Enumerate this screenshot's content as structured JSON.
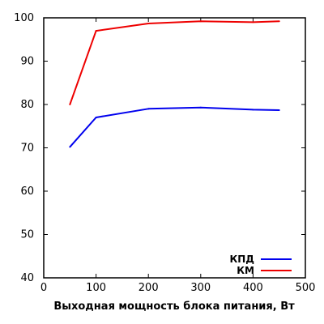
{
  "chart_data": {
    "type": "line",
    "title": "",
    "xlabel": "Выходная мощность блока питания, Вт",
    "ylabel": "",
    "xlim": [
      0,
      500
    ],
    "ylim": [
      40,
      100
    ],
    "x_ticks": [
      0,
      100,
      200,
      300,
      400,
      500
    ],
    "y_ticks": [
      40,
      50,
      60,
      70,
      80,
      90,
      100
    ],
    "grid": "none",
    "legend_position": "bottom-right",
    "series": [
      {
        "name": "КПД",
        "color": "#0000ee",
        "x": [
          50,
          100,
          200,
          300,
          400,
          450
        ],
        "y": [
          70.2,
          77.0,
          79.0,
          79.3,
          78.8,
          78.7
        ]
      },
      {
        "name": "КМ",
        "color": "#ee0000",
        "x": [
          50,
          100,
          200,
          300,
          400,
          450
        ],
        "y": [
          80.0,
          97.0,
          98.7,
          99.2,
          99.0,
          99.2
        ]
      }
    ]
  }
}
